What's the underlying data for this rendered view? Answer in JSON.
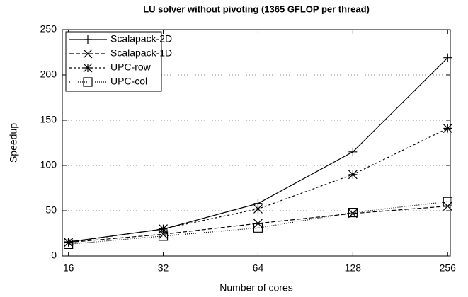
{
  "chart_data": {
    "type": "line",
    "title": "LU solver without pivoting (1365 GFLOP per thread)",
    "x_label": "Number of cores",
    "y_label": "Speedup",
    "x": [
      16,
      32,
      64,
      128,
      256
    ],
    "xscale": "log",
    "xlim": [
      15.3,
      261
    ],
    "xticks": [
      16,
      32,
      64,
      128,
      256
    ],
    "ylim": [
      0,
      250
    ],
    "yticks": [
      0,
      50,
      100,
      150,
      200,
      250
    ],
    "grid": true,
    "legend": "upper left",
    "series": [
      {
        "name": "Scalapack-2D",
        "color": "#000000",
        "marker": "plus",
        "dash": "solid",
        "values": [
          15.6,
          29.7,
          58,
          115,
          219
        ]
      },
      {
        "name": "Scalapack-1D",
        "color": "#000000",
        "marker": "x",
        "dash": "dashed",
        "values": [
          15,
          24,
          36,
          47,
          55
        ]
      },
      {
        "name": "UPC-row",
        "color": "#000000",
        "marker": "asterisk",
        "dash": "short-dashed",
        "values": [
          15,
          30,
          52,
          90,
          141
        ]
      },
      {
        "name": "UPC-col",
        "color": "#000000",
        "marker": "square",
        "dash": "dotted",
        "values": [
          13,
          22,
          31,
          48,
          60
        ]
      }
    ]
  }
}
